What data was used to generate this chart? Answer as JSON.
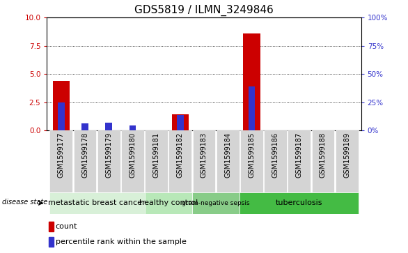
{
  "title": "GDS5819 / ILMN_3249846",
  "samples": [
    "GSM1599177",
    "GSM1599178",
    "GSM1599179",
    "GSM1599180",
    "GSM1599181",
    "GSM1599182",
    "GSM1599183",
    "GSM1599184",
    "GSM1599185",
    "GSM1599186",
    "GSM1599187",
    "GSM1599188",
    "GSM1599189"
  ],
  "count": [
    4.4,
    0.0,
    0.0,
    0.0,
    0.0,
    1.4,
    0.0,
    0.0,
    8.6,
    0.0,
    0.0,
    0.0,
    0.0
  ],
  "percentile": [
    25.0,
    6.0,
    6.5,
    4.5,
    0.0,
    13.5,
    0.0,
    0.0,
    39.0,
    0.0,
    0.0,
    0.0,
    0.0
  ],
  "ylim_left": [
    0,
    10
  ],
  "ylim_right": [
    0,
    100
  ],
  "yticks_left": [
    0,
    2.5,
    5.0,
    7.5,
    10.0
  ],
  "yticks_right": [
    0,
    25,
    50,
    75,
    100
  ],
  "red_color": "#cc0000",
  "blue_color": "#3333cc",
  "groups": [
    {
      "label": "metastatic breast cancer",
      "start": 0,
      "end": 3,
      "color": "#d8f0d8"
    },
    {
      "label": "healthy control",
      "start": 4,
      "end": 5,
      "color": "#b8e8b8"
    },
    {
      "label": "gram-negative sepsis",
      "start": 6,
      "end": 7,
      "color": "#88cc88"
    },
    {
      "label": "tuberculosis",
      "start": 8,
      "end": 12,
      "color": "#44bb44"
    }
  ],
  "disease_state_label": "disease state",
  "legend_count": "count",
  "legend_percentile": "percentile rank within the sample",
  "bg_color": "#ffffff",
  "sample_box_color": "#d4d4d4",
  "title_fontsize": 11,
  "tick_fontsize": 7.5,
  "label_fontsize": 8
}
